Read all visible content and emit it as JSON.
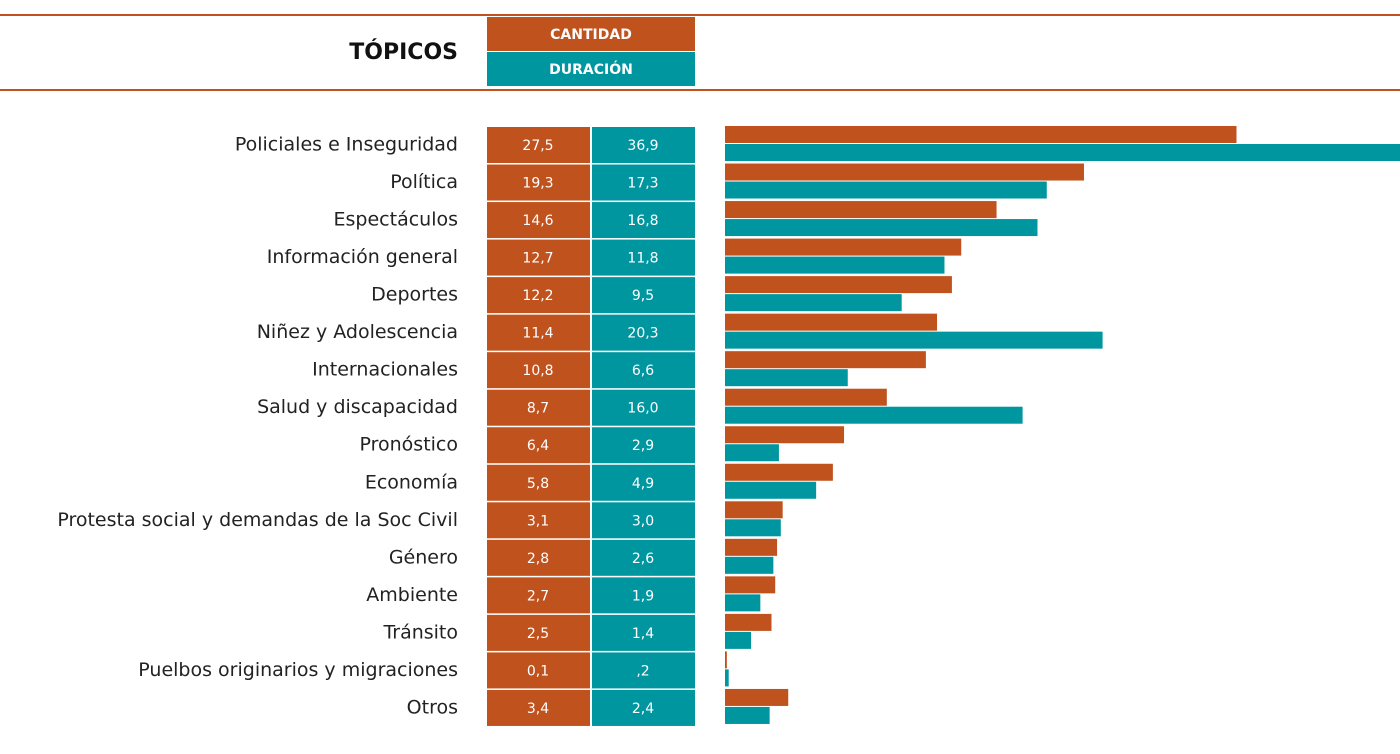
{
  "chart_data": {
    "type": "bar",
    "orientation": "horizontal",
    "title": "TÓPICOS",
    "categories": [
      "Policiales e Inseguridad",
      "Política",
      "Espectáculos",
      "Información general",
      "Deportes",
      "Niñez y Adolescencia",
      "Internacionales",
      "Salud y discapacidad",
      "Pronóstico",
      "Economía",
      "Protesta social y demandas de la Soc Civil",
      "Género",
      "Ambiente",
      "Tránsito",
      "Puelbos originarios y migraciones",
      "Otros"
    ],
    "series": [
      {
        "name": "CANTIDAD",
        "color": "#c0521e",
        "values": [
          27.5,
          19.3,
          14.6,
          12.7,
          12.2,
          11.4,
          10.8,
          8.7,
          6.4,
          5.8,
          3.1,
          2.8,
          2.7,
          2.5,
          0.1,
          3.4
        ],
        "value_labels": [
          "27,5",
          "19,3",
          "14,6",
          "12,7",
          "12,2",
          "11,4",
          "10,8",
          "8,7",
          "6,4",
          "5,8",
          "3,1",
          "2,8",
          "2,7",
          "2,5",
          "0,1",
          "3,4"
        ]
      },
      {
        "name": "DURACIÓN",
        "color": "#0096a0",
        "values": [
          36.9,
          17.3,
          16.8,
          11.8,
          9.5,
          20.3,
          6.6,
          16.0,
          2.9,
          4.9,
          3.0,
          2.6,
          1.9,
          1.4,
          0.2,
          2.4
        ],
        "value_labels": [
          "36,9",
          "17,3",
          "16,8",
          "11,8",
          "9,5",
          "20,3",
          "6,6",
          "16,0",
          "2,9",
          "4,9",
          "3,0",
          "2,6",
          "1,9",
          "1,4",
          ",2",
          "2,4"
        ]
      }
    ]
  }
}
